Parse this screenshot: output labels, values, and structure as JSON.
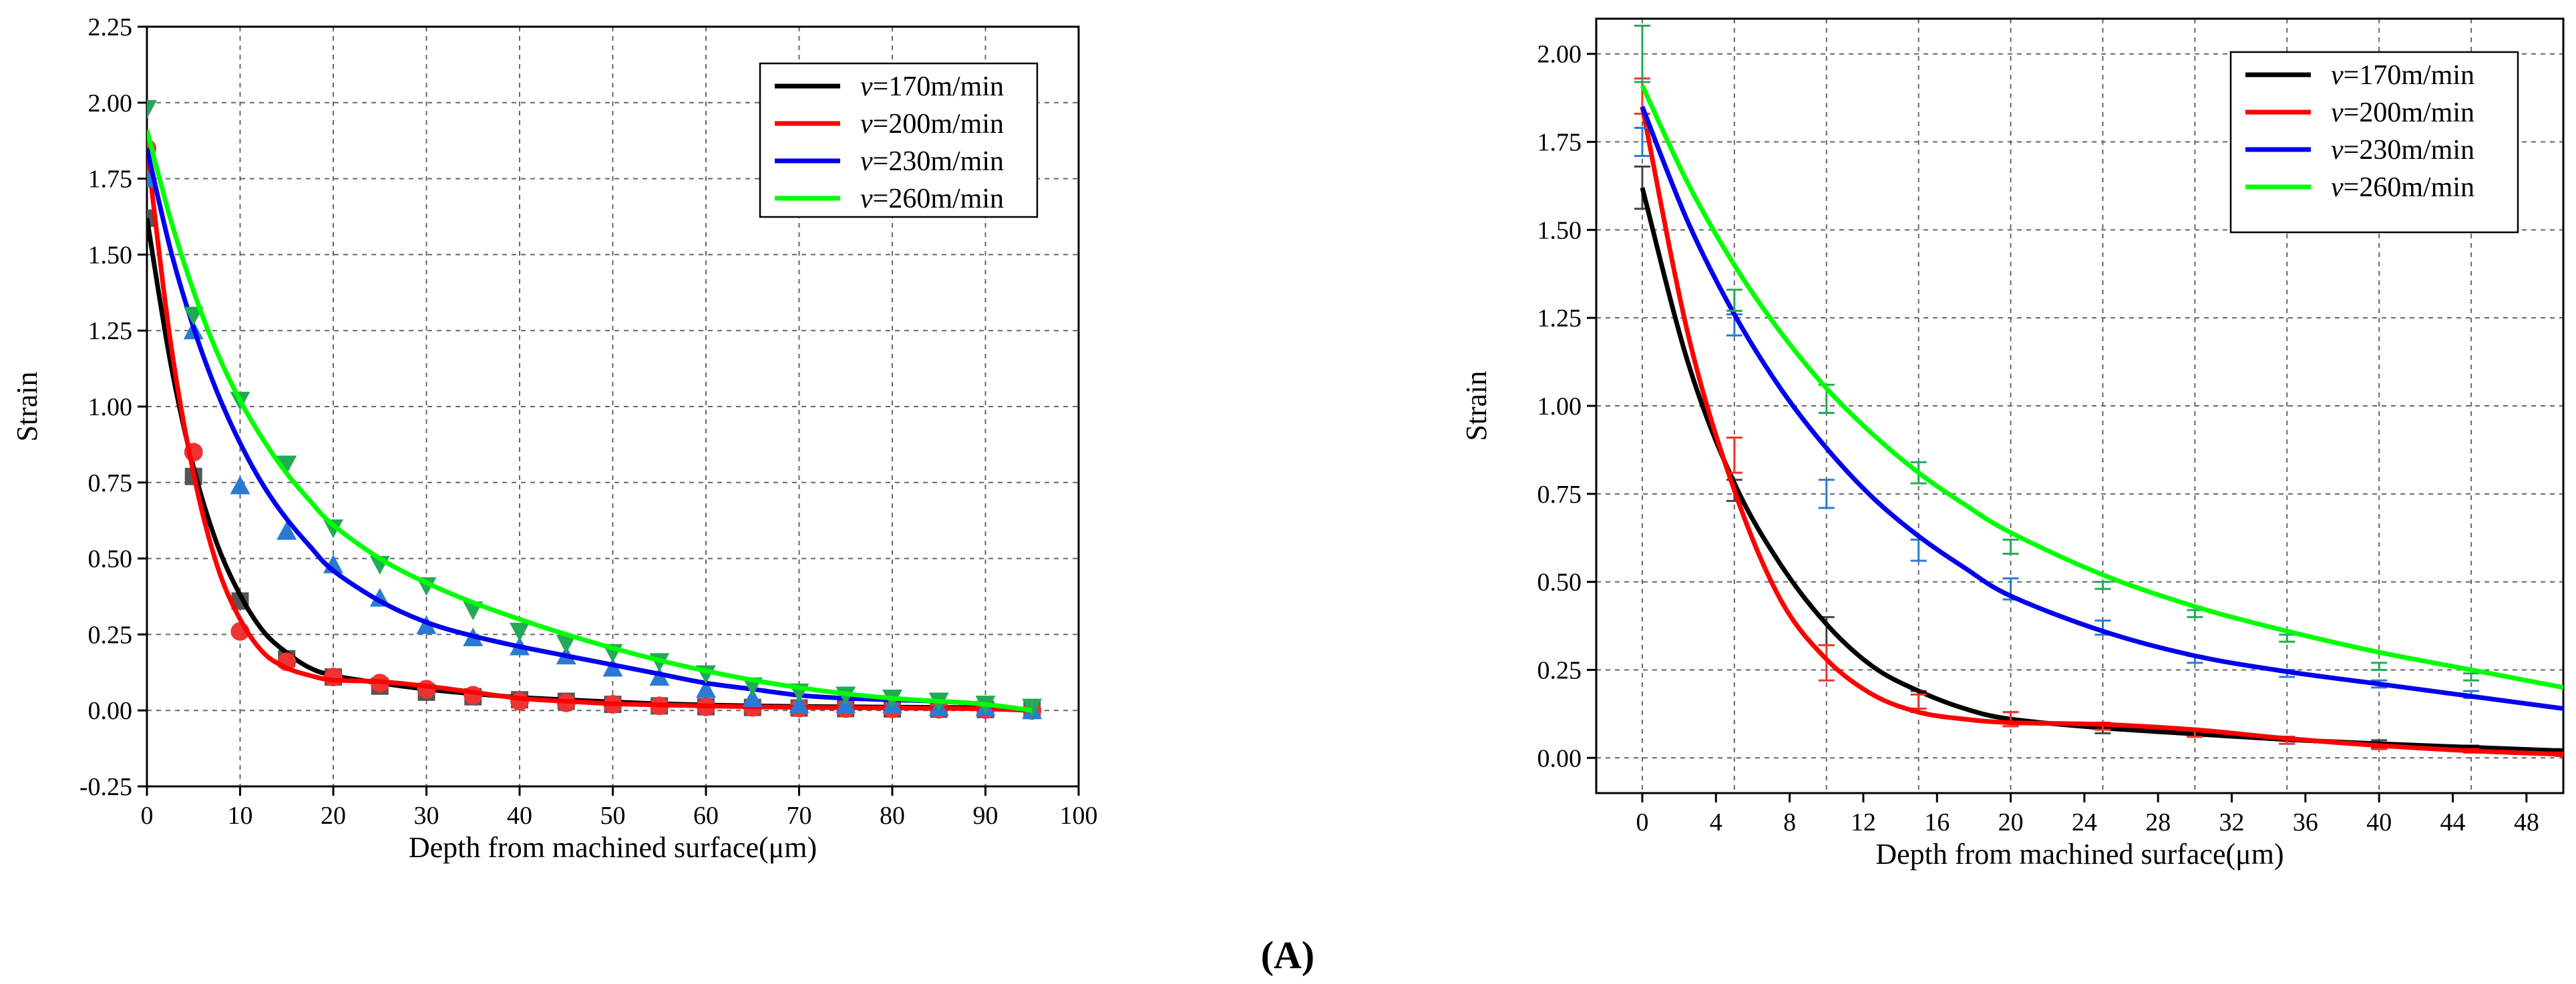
{
  "figure": {
    "panel_label": "(A)"
  },
  "chart_data": [
    {
      "type": "line",
      "xlabel": "Depth from machined surface(μm)",
      "ylabel": "Strain",
      "xlim": [
        0,
        100
      ],
      "ylim": [
        -0.25,
        2.25
      ],
      "xticks": [
        0,
        10,
        20,
        30,
        40,
        50,
        60,
        70,
        80,
        90,
        100
      ],
      "yticks": [
        -0.25,
        0.0,
        0.25,
        0.5,
        0.75,
        1.0,
        1.25,
        1.5,
        1.75,
        2.0,
        2.25
      ],
      "xtick_labels": [
        "0",
        "10",
        "20",
        "30",
        "40",
        "50",
        "60",
        "70",
        "80",
        "90",
        "100"
      ],
      "ytick_labels": [
        "-0.25",
        "0.00",
        "0.25",
        "0.50",
        "0.75",
        "1.00",
        "1.25",
        "1.50",
        "1.75",
        "2.00",
        "2.25"
      ],
      "grid": true,
      "legend_position": "top-right",
      "series": [
        {
          "name": "v=170m/min",
          "legend_prefix": "v",
          "legend_suffix": "=170m/min",
          "line_color": "#000000",
          "marker_color": "#555555",
          "marker": "square",
          "points_x": [
            0,
            5,
            10,
            15,
            20,
            25,
            30,
            35,
            40,
            45,
            50,
            55,
            60,
            65,
            70,
            75,
            80,
            85,
            90,
            95
          ],
          "points_y": [
            1.62,
            0.77,
            0.36,
            0.17,
            0.11,
            0.08,
            0.06,
            0.045,
            0.035,
            0.03,
            0.02,
            0.015,
            0.012,
            0.01,
            0.008,
            0.006,
            0.005,
            0.004,
            0.003,
            0.0
          ],
          "fit_x": [
            0,
            2.5,
            5,
            7.5,
            10,
            12.5,
            15,
            17.5,
            20,
            25,
            30,
            35,
            40,
            45,
            50,
            55,
            60,
            65,
            70,
            75,
            80,
            85,
            90,
            95
          ],
          "fit_y": [
            1.62,
            1.15,
            0.8,
            0.55,
            0.38,
            0.26,
            0.19,
            0.14,
            0.115,
            0.09,
            0.07,
            0.055,
            0.043,
            0.035,
            0.028,
            0.022,
            0.018,
            0.015,
            0.013,
            0.012,
            0.011,
            0.01,
            0.008,
            0.0
          ]
        },
        {
          "name": "v=200m/min",
          "legend_prefix": "v",
          "legend_suffix": "=200m/min",
          "line_color": "#ff0000",
          "marker_color": "#ee3333",
          "marker": "circle",
          "points_x": [
            0,
            5,
            10,
            15,
            20,
            25,
            30,
            35,
            40,
            45,
            50,
            55,
            60,
            65,
            70,
            75,
            80,
            85,
            90,
            95
          ],
          "points_y": [
            1.85,
            0.85,
            0.26,
            0.16,
            0.11,
            0.09,
            0.07,
            0.05,
            0.03,
            0.025,
            0.02,
            0.015,
            0.012,
            0.01,
            0.008,
            0.006,
            0.005,
            0.004,
            0.003,
            0.0
          ],
          "fit_x": [
            0,
            2.5,
            5,
            7.5,
            10,
            12.5,
            15,
            17.5,
            20,
            25,
            30,
            35,
            40,
            45,
            50,
            55,
            60,
            65,
            70,
            75,
            80,
            85,
            90,
            95
          ],
          "fit_y": [
            1.85,
            1.22,
            0.78,
            0.48,
            0.3,
            0.19,
            0.14,
            0.115,
            0.1,
            0.095,
            0.08,
            0.06,
            0.04,
            0.03,
            0.022,
            0.018,
            0.015,
            0.012,
            0.01,
            0.009,
            0.008,
            0.007,
            0.005,
            0.0
          ]
        },
        {
          "name": "v=230m/min",
          "legend_prefix": "v",
          "legend_suffix": "=230m/min",
          "line_color": "#0000ee",
          "marker_color": "#2a7ad4",
          "marker": "triangle-up",
          "points_x": [
            0,
            5,
            10,
            15,
            20,
            25,
            30,
            35,
            40,
            45,
            50,
            55,
            60,
            65,
            70,
            75,
            80,
            85,
            90,
            95
          ],
          "points_y": [
            1.75,
            1.25,
            0.74,
            0.59,
            0.48,
            0.37,
            0.28,
            0.24,
            0.21,
            0.18,
            0.14,
            0.11,
            0.07,
            0.04,
            0.02,
            0.02,
            0.02,
            0.01,
            0.01,
            0.0
          ],
          "fit_x": [
            0,
            2.5,
            5,
            7.5,
            10,
            12.5,
            15,
            17.5,
            20,
            25,
            30,
            35,
            40,
            45,
            50,
            55,
            60,
            65,
            70,
            75,
            80,
            85,
            90,
            95
          ],
          "fit_y": [
            1.85,
            1.52,
            1.26,
            1.05,
            0.88,
            0.74,
            0.63,
            0.54,
            0.46,
            0.36,
            0.29,
            0.245,
            0.21,
            0.18,
            0.15,
            0.12,
            0.09,
            0.07,
            0.05,
            0.04,
            0.035,
            0.03,
            0.02,
            0.0
          ]
        },
        {
          "name": "v=260m/min",
          "legend_prefix": "v",
          "legend_suffix": "=260m/min",
          "line_color": "#00ff00",
          "marker_color": "#22aa55",
          "marker": "triangle-down",
          "points_x": [
            0,
            5,
            10,
            15,
            20,
            25,
            30,
            35,
            40,
            45,
            50,
            55,
            60,
            65,
            70,
            75,
            80,
            85,
            90,
            95
          ],
          "points_y": [
            1.98,
            1.3,
            1.02,
            0.81,
            0.6,
            0.48,
            0.41,
            0.33,
            0.26,
            0.22,
            0.19,
            0.16,
            0.12,
            0.08,
            0.06,
            0.05,
            0.04,
            0.03,
            0.02,
            0.01
          ],
          "fit_x": [
            0,
            2.5,
            5,
            7.5,
            10,
            12.5,
            15,
            17.5,
            20,
            25,
            30,
            35,
            40,
            45,
            50,
            55,
            60,
            65,
            70,
            75,
            80,
            85,
            90,
            95
          ],
          "fit_y": [
            1.91,
            1.62,
            1.38,
            1.18,
            1.02,
            0.89,
            0.78,
            0.69,
            0.61,
            0.5,
            0.42,
            0.355,
            0.3,
            0.25,
            0.205,
            0.165,
            0.13,
            0.1,
            0.075,
            0.055,
            0.04,
            0.03,
            0.02,
            0.0
          ]
        }
      ]
    },
    {
      "type": "line",
      "xlabel": "Depth from machined surface(μm)",
      "ylabel": "Strain",
      "xlim": [
        -2.5,
        50
      ],
      "ylim": [
        -0.1,
        2.1
      ],
      "xticks": [
        0,
        4,
        8,
        12,
        16,
        20,
        24,
        28,
        32,
        36,
        40,
        44,
        48
      ],
      "xtick_labels": [
        "0",
        "4",
        "8",
        "12",
        "16",
        "20",
        "24",
        "28",
        "32",
        "36",
        "40",
        "44",
        "48"
      ],
      "xgrid_values": [
        0,
        5,
        10,
        15,
        20,
        25,
        30,
        35,
        40,
        45
      ],
      "yticks": [
        0.0,
        0.25,
        0.5,
        0.75,
        1.0,
        1.25,
        1.5,
        1.75,
        2.0
      ],
      "ytick_labels": [
        "0.00",
        "0.25",
        "0.50",
        "0.75",
        "1.00",
        "1.25",
        "1.50",
        "1.75",
        "2.00"
      ],
      "grid": true,
      "legend_position": "top-right",
      "series": [
        {
          "name": "v=170m/min",
          "legend_prefix": "v",
          "legend_suffix": "=170m/min",
          "line_color": "#000000",
          "errorbar_color": "#444444",
          "points_x": [
            0,
            5,
            10,
            15,
            20,
            25,
            30,
            35,
            40,
            45,
            50
          ],
          "points_y": [
            1.62,
            0.76,
            0.36,
            0.16,
            0.11,
            0.08,
            0.07,
            0.05,
            0.04,
            0.03,
            0.02
          ],
          "errors": [
            0.06,
            0.03,
            0.04,
            0.03,
            0.02,
            0.01,
            0.01,
            0.01,
            0.01,
            0.005,
            0.005
          ],
          "fit_x": [
            0,
            2.5,
            5,
            7.5,
            10,
            12.5,
            15,
            17.5,
            20,
            25,
            30,
            35,
            40,
            45,
            50
          ],
          "fit_y": [
            1.62,
            1.12,
            0.78,
            0.55,
            0.38,
            0.26,
            0.19,
            0.14,
            0.11,
            0.085,
            0.068,
            0.052,
            0.04,
            0.03,
            0.02
          ]
        },
        {
          "name": "v=200m/min",
          "legend_prefix": "v",
          "legend_suffix": "=200m/min",
          "line_color": "#ff0000",
          "errorbar_color": "#ee3333",
          "points_x": [
            0,
            5,
            10,
            15,
            20,
            25,
            30,
            35,
            40,
            45,
            50
          ],
          "points_y": [
            1.88,
            0.86,
            0.27,
            0.16,
            0.11,
            0.09,
            0.07,
            0.05,
            0.03,
            0.02,
            0.01
          ],
          "errors": [
            0.05,
            0.05,
            0.05,
            0.02,
            0.02,
            0.01,
            0.01,
            0.01,
            0.005,
            0.005,
            0.005
          ],
          "fit_x": [
            0,
            2.5,
            5,
            7.5,
            10,
            12.5,
            15,
            17.5,
            20,
            25,
            30,
            35,
            40,
            45,
            50
          ],
          "fit_y": [
            1.85,
            1.2,
            0.76,
            0.45,
            0.28,
            0.18,
            0.13,
            0.11,
            0.1,
            0.095,
            0.08,
            0.055,
            0.035,
            0.02,
            0.01
          ]
        },
        {
          "name": "v=230m/min",
          "legend_prefix": "v",
          "legend_suffix": "=230m/min",
          "line_color": "#0000ee",
          "errorbar_color": "#2a7ad4",
          "points_x": [
            0,
            5,
            10,
            15,
            20,
            25,
            30,
            35,
            40,
            45
          ],
          "points_y": [
            1.75,
            1.23,
            0.75,
            0.59,
            0.48,
            0.37,
            0.28,
            0.24,
            0.21,
            0.18
          ],
          "errors": [
            0.04,
            0.03,
            0.04,
            0.03,
            0.03,
            0.02,
            0.01,
            0.01,
            0.01,
            0.01
          ],
          "fit_x": [
            0,
            2.5,
            5,
            7.5,
            10,
            12.5,
            15,
            17.5,
            20,
            25,
            30,
            35,
            40,
            45,
            50
          ],
          "fit_y": [
            1.85,
            1.52,
            1.26,
            1.05,
            0.88,
            0.74,
            0.63,
            0.54,
            0.46,
            0.36,
            0.29,
            0.245,
            0.21,
            0.175,
            0.14
          ]
        },
        {
          "name": "v=260m/min",
          "legend_prefix": "v",
          "legend_suffix": "=260m/min",
          "line_color": "#00ff00",
          "errorbar_color": "#22aa55",
          "points_x": [
            0,
            5,
            10,
            15,
            20,
            25,
            30,
            35,
            40,
            45
          ],
          "points_y": [
            2.0,
            1.3,
            1.02,
            0.81,
            0.6,
            0.49,
            0.41,
            0.34,
            0.26,
            0.23
          ],
          "errors": [
            0.08,
            0.03,
            0.04,
            0.03,
            0.02,
            0.01,
            0.01,
            0.01,
            0.01,
            0.01
          ],
          "fit_x": [
            0,
            2.5,
            5,
            7.5,
            10,
            12.5,
            15,
            17.5,
            20,
            25,
            30,
            35,
            40,
            45,
            50
          ],
          "fit_y": [
            1.91,
            1.63,
            1.4,
            1.21,
            1.05,
            0.92,
            0.81,
            0.72,
            0.64,
            0.52,
            0.43,
            0.36,
            0.3,
            0.25,
            0.2
          ]
        }
      ]
    }
  ]
}
